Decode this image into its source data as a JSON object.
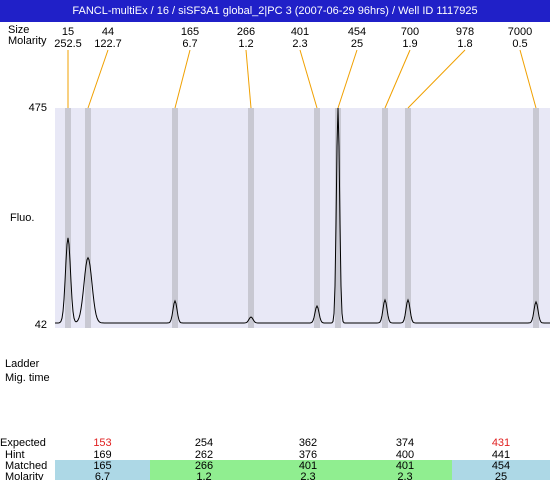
{
  "header": {
    "title": "FANCL-multiEx / 16 / siSF3A1 global_2|PC 3 (2007-06-29 96hrs) / Well ID 1117925"
  },
  "chart_data": {
    "type": "electropherogram",
    "y_label": "Fluo.",
    "ylim": [
      42,
      475
    ],
    "yticks": [
      42,
      475
    ],
    "size_label": "Size",
    "molarity_label": "Molarity",
    "sizes": [
      15,
      44,
      165,
      266,
      401,
      454,
      700,
      978,
      7000
    ],
    "molarities": [
      252.5,
      122.7,
      6.7,
      1.2,
      2.3,
      25,
      1.9,
      1.8,
      0.5
    ],
    "peak_heights": [
      216,
      176,
      90,
      58,
      80,
      475,
      92,
      92,
      88
    ],
    "baseline": 46,
    "trace_color": "#000000",
    "marker_color": "#c8c8d2",
    "plot_background": "#e8e8f6",
    "leader_color": "#f0a000"
  },
  "side_labels": {
    "ladder": "Ladder",
    "mig_time": "Mig. time"
  },
  "table": {
    "row_labels": [
      "Expected",
      "Hint",
      "Matched",
      "Molarity"
    ],
    "expected": [
      153,
      254,
      362,
      374,
      431
    ],
    "expected_colors": [
      "#e02020",
      "#000000",
      "#000000",
      "#000000",
      "#e02020"
    ],
    "hint": [
      169,
      262,
      376,
      400,
      441
    ],
    "matched": [
      165,
      266,
      401,
      401,
      454
    ],
    "molarity": [
      6.7,
      1.2,
      2.3,
      2.3,
      25
    ],
    "column_colors": [
      "#add8e6",
      "#90ee90",
      "#90ee90",
      "#90ee90",
      "#add8e6"
    ]
  }
}
